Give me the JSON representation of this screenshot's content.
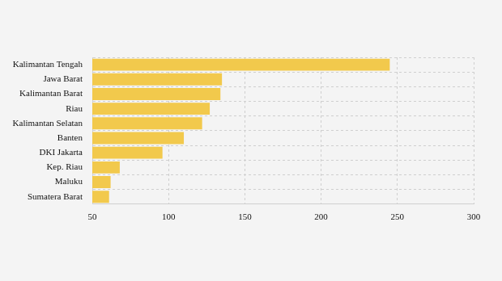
{
  "chart_data": {
    "type": "bar",
    "orientation": "horizontal",
    "categories": [
      "Kalimantan Tengah",
      "Jawa Barat",
      "Kalimantan Barat",
      "Riau",
      "Kalimantan Selatan",
      "Banten",
      "DKI Jakarta",
      "Kep. Riau",
      "Maluku",
      "Sumatera Barat"
    ],
    "values": [
      245,
      135,
      134,
      127,
      122,
      110,
      96,
      68,
      62,
      61
    ],
    "color": "#f2c94c",
    "xlim": [
      50,
      300
    ],
    "xticks": [
      50,
      100,
      150,
      200,
      250,
      300
    ],
    "grid": true
  }
}
